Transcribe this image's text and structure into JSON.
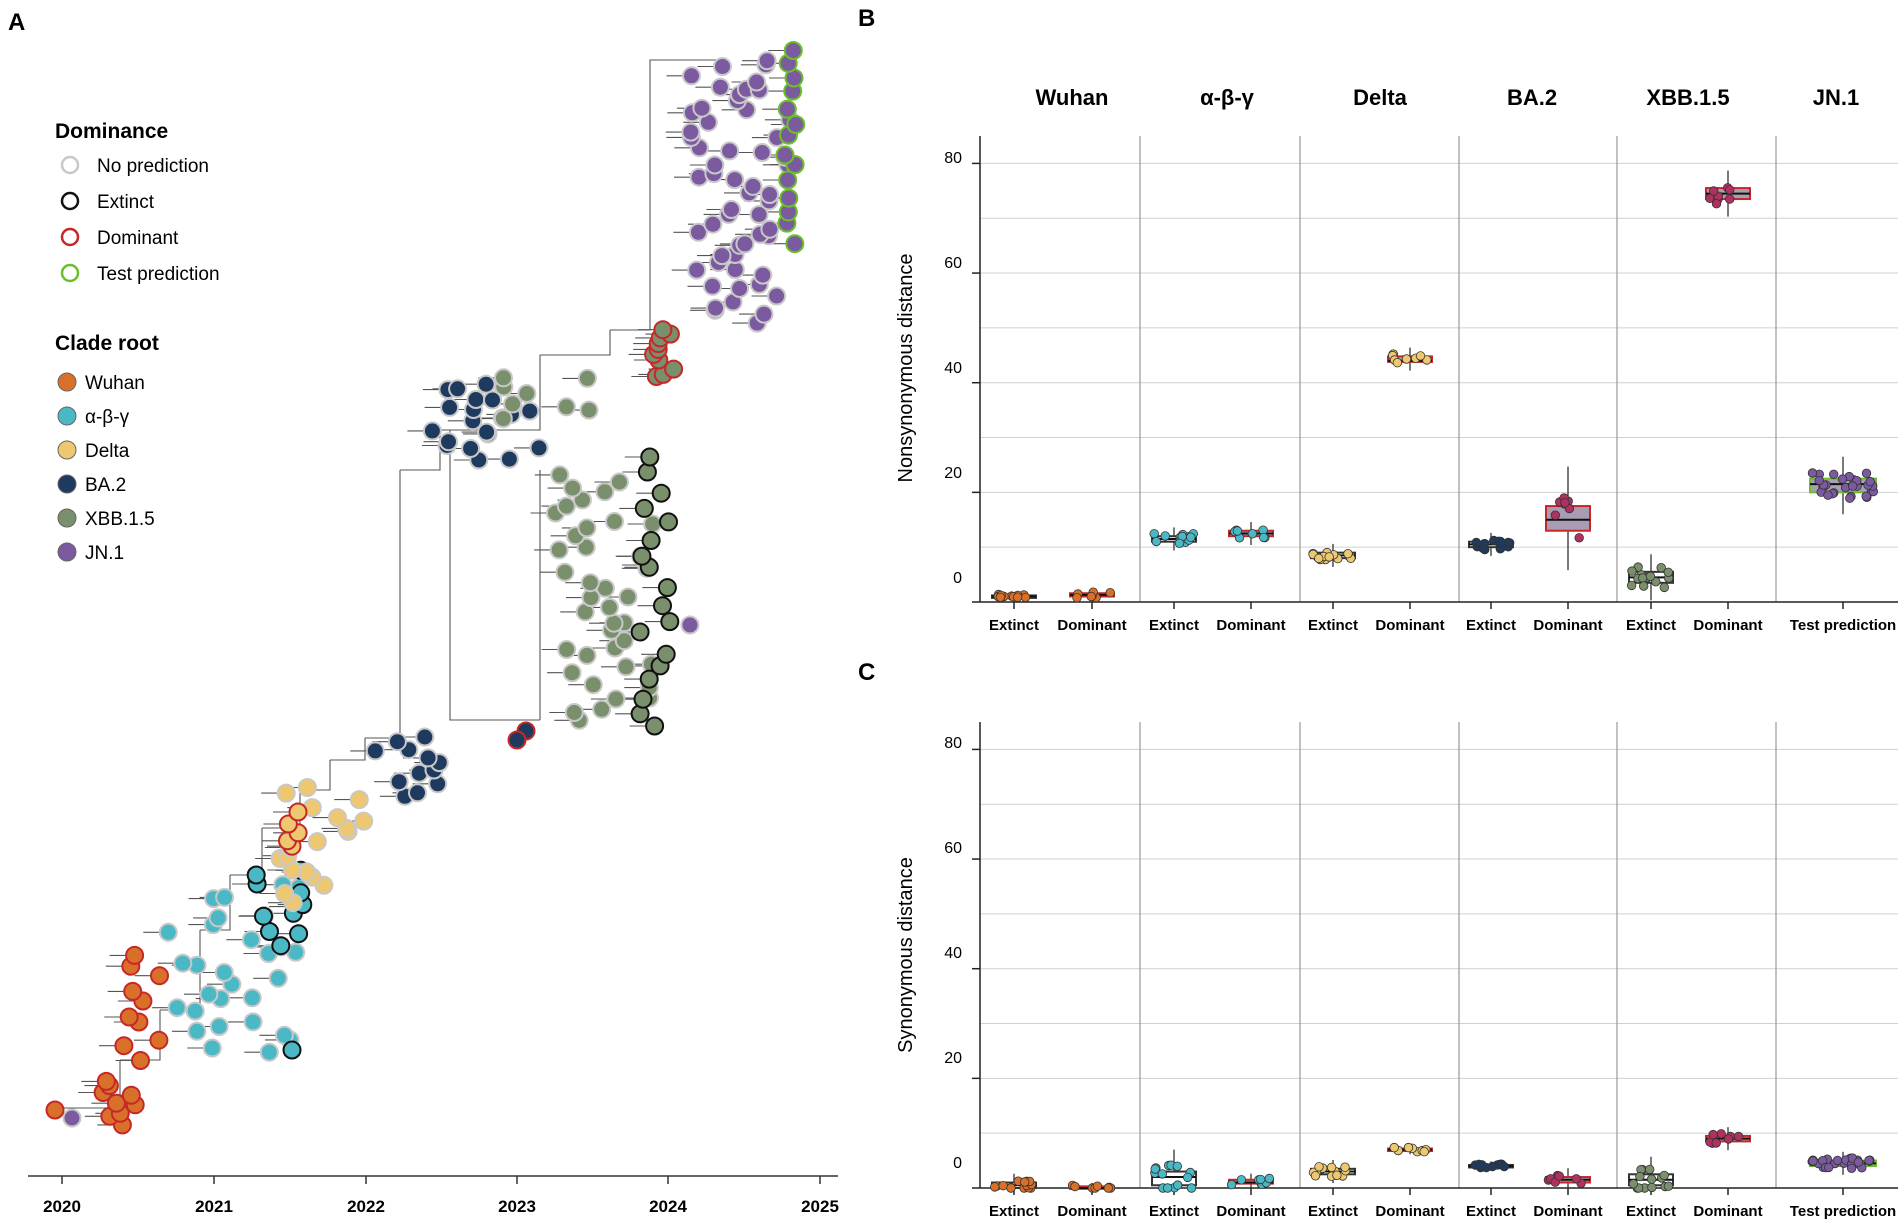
{
  "panels": {
    "a": "A",
    "b": "B",
    "c": "C"
  },
  "legend": {
    "dominance_title": "Dominance",
    "dominance": [
      {
        "label": "No prediction",
        "color": "#c8c8c8"
      },
      {
        "label": "Extinct",
        "color": "#111111"
      },
      {
        "label": "Dominant",
        "color": "#c62828"
      },
      {
        "label": "Test prediction",
        "color": "#6abf2a"
      }
    ],
    "clade_title": "Clade root",
    "clades": [
      {
        "label": "Wuhan",
        "color": "#d9702a"
      },
      {
        "label": "α-β-γ",
        "color": "#4bb8c6"
      },
      {
        "label": "Delta",
        "color": "#eec870"
      },
      {
        "label": "BA.2",
        "color": "#1e3a5f"
      },
      {
        "label": "XBB.1.5",
        "color": "#7a8f6b"
      },
      {
        "label": "JN.1",
        "color": "#7b5aa0"
      }
    ]
  },
  "tree_axis": {
    "years": [
      "2020",
      "2021",
      "2022",
      "2023",
      "2024",
      "2025"
    ]
  },
  "chart_data": [
    {
      "type": "box",
      "panel": "B",
      "ylabel": "Nonsynonymous distance",
      "ylim": [
        0,
        85
      ],
      "yticks": [
        "0",
        "20",
        "40",
        "60",
        "80"
      ],
      "facets": [
        "Wuhan",
        "α-β-γ",
        "Delta",
        "BA.2",
        "XBB.1.5",
        "JN.1"
      ],
      "groups": [
        {
          "facet": "Wuhan",
          "label": "Extinct",
          "median": 1,
          "q1": 1,
          "q3": 1.2
        },
        {
          "facet": "Wuhan",
          "label": "Dominant",
          "median": 1.3,
          "q1": 1,
          "q3": 1.6
        },
        {
          "facet": "α-β-γ",
          "label": "Extinct",
          "median": 11.5,
          "q1": 11,
          "q3": 12
        },
        {
          "facet": "α-β-γ",
          "label": "Dominant",
          "median": 12.5,
          "q1": 12,
          "q3": 13
        },
        {
          "facet": "Delta",
          "label": "Extinct",
          "median": 8.5,
          "q1": 8,
          "q3": 9
        },
        {
          "facet": "Delta",
          "label": "Dominant",
          "median": 44,
          "q1": 43.8,
          "q3": 44.8
        },
        {
          "facet": "BA.2",
          "label": "Extinct",
          "median": 10.5,
          "q1": 10,
          "q3": 11
        },
        {
          "facet": "BA.2",
          "label": "Dominant",
          "median": 15,
          "q1": 13,
          "q3": 17.5
        },
        {
          "facet": "XBB.1.5",
          "label": "Extinct",
          "median": 4.5,
          "q1": 3.5,
          "q3": 5.5
        },
        {
          "facet": "XBB.1.5",
          "label": "Dominant",
          "median": 74.5,
          "q1": 73.5,
          "q3": 75.5
        },
        {
          "facet": "JN.1",
          "label": "Test prediction",
          "median": 21.5,
          "q1": 20,
          "q3": 22.5
        }
      ]
    },
    {
      "type": "box",
      "panel": "C",
      "ylabel": "Synonymous distance",
      "ylim": [
        0,
        85
      ],
      "yticks": [
        "0",
        "20",
        "40",
        "60",
        "80"
      ],
      "facets": [
        "Wuhan",
        "α-β-γ",
        "Delta",
        "BA.2",
        "XBB.1.5",
        "JN.1"
      ],
      "groups": [
        {
          "facet": "Wuhan",
          "label": "Extinct",
          "median": 0.5,
          "q1": 0,
          "q3": 1
        },
        {
          "facet": "Wuhan",
          "label": "Dominant",
          "median": 0,
          "q1": 0,
          "q3": 0.3
        },
        {
          "facet": "α-β-γ",
          "label": "Extinct",
          "median": 2,
          "q1": 0.5,
          "q3": 3
        },
        {
          "facet": "α-β-γ",
          "label": "Dominant",
          "median": 1,
          "q1": 0.8,
          "q3": 1.5
        },
        {
          "facet": "Delta",
          "label": "Extinct",
          "median": 3,
          "q1": 2.5,
          "q3": 3.5
        },
        {
          "facet": "Delta",
          "label": "Dominant",
          "median": 7,
          "q1": 6.8,
          "q3": 7.2
        },
        {
          "facet": "BA.2",
          "label": "Extinct",
          "median": 4,
          "q1": 3.8,
          "q3": 4.2
        },
        {
          "facet": "BA.2",
          "label": "Dominant",
          "median": 1.5,
          "q1": 1,
          "q3": 2
        },
        {
          "facet": "XBB.1.5",
          "label": "Extinct",
          "median": 1.5,
          "q1": 0.5,
          "q3": 2.5
        },
        {
          "facet": "XBB.1.5",
          "label": "Dominant",
          "median": 9,
          "q1": 8.5,
          "q3": 9.5
        },
        {
          "facet": "JN.1",
          "label": "Test prediction",
          "median": 4.5,
          "q1": 4,
          "q3": 5
        }
      ]
    }
  ]
}
